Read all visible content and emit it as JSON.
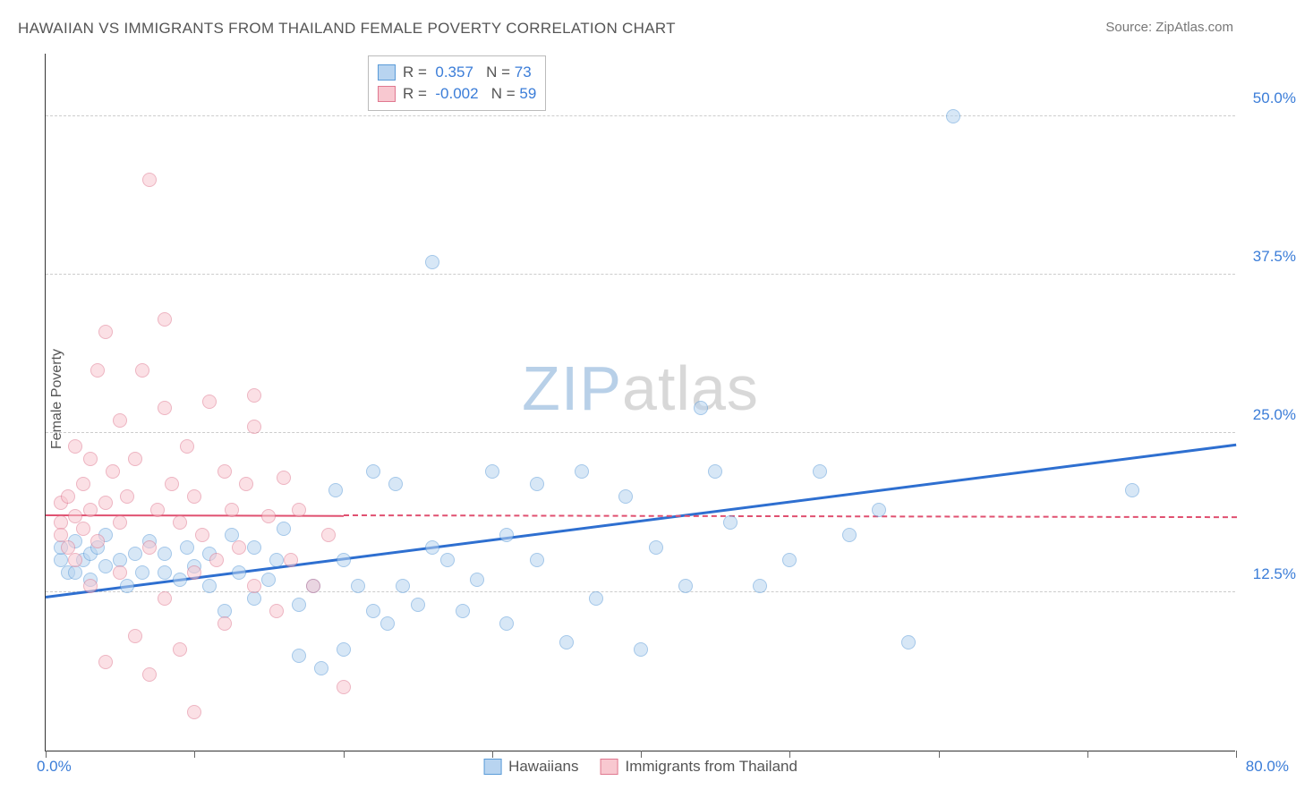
{
  "title": "HAWAIIAN VS IMMIGRANTS FROM THAILAND FEMALE POVERTY CORRELATION CHART",
  "source_prefix": "Source: ",
  "source": "ZipAtlas.com",
  "ylabel": "Female Poverty",
  "watermark": {
    "zip": "ZIP",
    "atlas": "atlas"
  },
  "chart": {
    "type": "scatter",
    "xlim": [
      0,
      80
    ],
    "ylim": [
      0,
      55
    ],
    "xticks": [
      0,
      10,
      20,
      30,
      40,
      50,
      60,
      70,
      80
    ],
    "yticks": [
      12.5,
      25.0,
      37.5,
      50.0
    ],
    "ytick_labels": [
      "12.5%",
      "25.0%",
      "37.5%",
      "50.0%"
    ],
    "xlabel_min": "0.0%",
    "xlabel_max": "80.0%",
    "background": "#ffffff",
    "grid_color": "#cccccc",
    "marker_radius": 8,
    "marker_opacity": 0.55,
    "series": [
      {
        "name": "Hawaiians",
        "fill": "#b8d4f0",
        "stroke": "#5a9bd8",
        "R": "0.357",
        "N": "73",
        "regression": {
          "x1": 0,
          "y1": 12.0,
          "x2": 80,
          "y2": 24.0,
          "color": "#2e6fd0",
          "width": 3,
          "dash": false,
          "solid_until_x": 80
        },
        "points": [
          [
            1,
            15
          ],
          [
            1,
            16
          ],
          [
            1.5,
            14
          ],
          [
            2,
            16.5
          ],
          [
            2,
            14
          ],
          [
            2.5,
            15
          ],
          [
            3,
            15.5
          ],
          [
            3,
            13.5
          ],
          [
            3.5,
            16
          ],
          [
            4,
            14.5
          ],
          [
            4,
            17
          ],
          [
            5,
            15
          ],
          [
            5.5,
            13
          ],
          [
            6,
            15.5
          ],
          [
            6.5,
            14
          ],
          [
            7,
            16.5
          ],
          [
            8,
            14
          ],
          [
            8,
            15.5
          ],
          [
            9,
            13.5
          ],
          [
            9.5,
            16
          ],
          [
            10,
            14.5
          ],
          [
            11,
            15.5
          ],
          [
            11,
            13
          ],
          [
            12,
            11
          ],
          [
            12.5,
            17
          ],
          [
            13,
            14
          ],
          [
            14,
            16
          ],
          [
            14,
            12
          ],
          [
            15,
            13.5
          ],
          [
            15.5,
            15
          ],
          [
            16,
            17.5
          ],
          [
            17,
            11.5
          ],
          [
            17,
            7.5
          ],
          [
            18,
            13
          ],
          [
            18.5,
            6.5
          ],
          [
            19.5,
            20.5
          ],
          [
            20,
            15
          ],
          [
            20,
            8
          ],
          [
            21,
            13
          ],
          [
            22,
            11
          ],
          [
            22,
            22
          ],
          [
            23,
            10
          ],
          [
            23.5,
            21
          ],
          [
            24,
            13
          ],
          [
            25,
            11.5
          ],
          [
            26,
            38.5
          ],
          [
            26,
            16
          ],
          [
            27,
            15
          ],
          [
            28,
            11
          ],
          [
            29,
            13.5
          ],
          [
            30,
            22
          ],
          [
            31,
            17
          ],
          [
            31,
            10
          ],
          [
            33,
            21
          ],
          [
            33,
            15
          ],
          [
            35,
            8.5
          ],
          [
            36,
            22
          ],
          [
            37,
            12
          ],
          [
            39,
            20
          ],
          [
            40,
            8
          ],
          [
            41,
            16
          ],
          [
            43,
            13
          ],
          [
            44,
            27
          ],
          [
            45,
            22
          ],
          [
            46,
            18
          ],
          [
            48,
            13
          ],
          [
            50,
            15
          ],
          [
            52,
            22
          ],
          [
            54,
            17
          ],
          [
            56,
            19
          ],
          [
            58,
            8.5
          ],
          [
            61,
            50
          ],
          [
            73,
            20.5
          ]
        ]
      },
      {
        "name": "Immigrants from Thailand",
        "fill": "#f8c8d0",
        "stroke": "#e07890",
        "R": "-0.002",
        "N": "59",
        "regression": {
          "x1": 0,
          "y1": 18.5,
          "x2": 80,
          "y2": 18.3,
          "color": "#e05070",
          "width": 2,
          "dash": true,
          "solid_until_x": 20
        },
        "points": [
          [
            1,
            18
          ],
          [
            1,
            19.5
          ],
          [
            1,
            17
          ],
          [
            1.5,
            20
          ],
          [
            1.5,
            16
          ],
          [
            2,
            24
          ],
          [
            2,
            18.5
          ],
          [
            2,
            15
          ],
          [
            2.5,
            21
          ],
          [
            2.5,
            17.5
          ],
          [
            3,
            19
          ],
          [
            3,
            23
          ],
          [
            3,
            13
          ],
          [
            3.5,
            30
          ],
          [
            3.5,
            16.5
          ],
          [
            4,
            19.5
          ],
          [
            4,
            33
          ],
          [
            4.5,
            22
          ],
          [
            5,
            18
          ],
          [
            5,
            26
          ],
          [
            5,
            14
          ],
          [
            5.5,
            20
          ],
          [
            6,
            23
          ],
          [
            6,
            9
          ],
          [
            6.5,
            30
          ],
          [
            7,
            16
          ],
          [
            7,
            45
          ],
          [
            7.5,
            19
          ],
          [
            8,
            34
          ],
          [
            8,
            12
          ],
          [
            8,
            27
          ],
          [
            8.5,
            21
          ],
          [
            9,
            18
          ],
          [
            9,
            8
          ],
          [
            9.5,
            24
          ],
          [
            10,
            14
          ],
          [
            10,
            20
          ],
          [
            10.5,
            17
          ],
          [
            11,
            27.5
          ],
          [
            11.5,
            15
          ],
          [
            12,
            22
          ],
          [
            12,
            10
          ],
          [
            12.5,
            19
          ],
          [
            13,
            16
          ],
          [
            13.5,
            21
          ],
          [
            14,
            13
          ],
          [
            14,
            25.5
          ],
          [
            15,
            18.5
          ],
          [
            15.5,
            11
          ],
          [
            16,
            21.5
          ],
          [
            16.5,
            15
          ],
          [
            17,
            19
          ],
          [
            10,
            3
          ],
          [
            18,
            13
          ],
          [
            7,
            6
          ],
          [
            19,
            17
          ],
          [
            4,
            7
          ],
          [
            20,
            5
          ],
          [
            14,
            28
          ]
        ]
      }
    ]
  },
  "legend_labels": {
    "R": "R =",
    "N": "N ="
  }
}
